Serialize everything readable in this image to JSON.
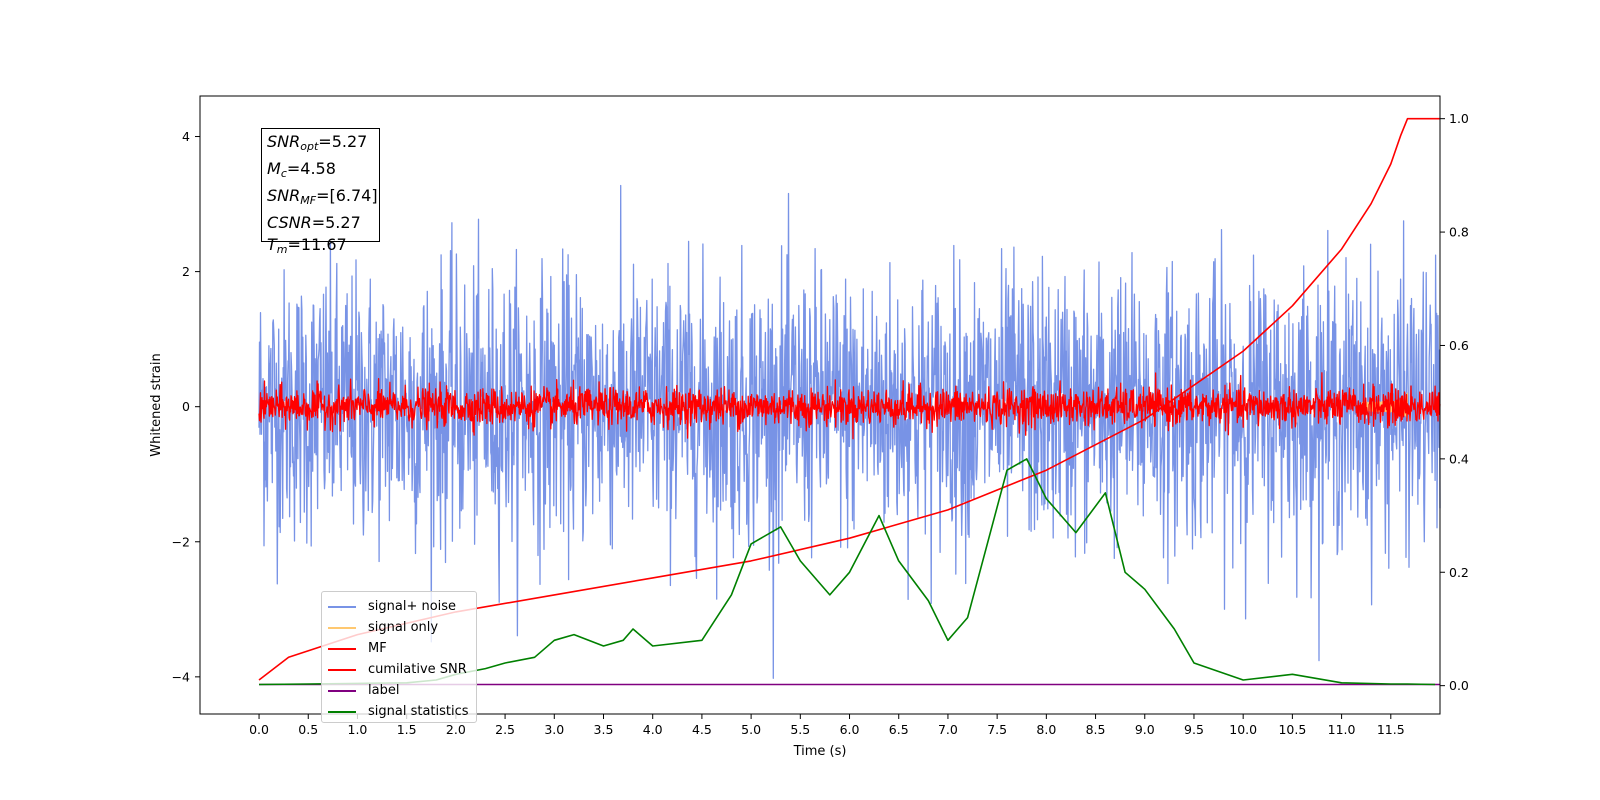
{
  "chart_data": {
    "type": "line",
    "xlabel": "Time (s)",
    "ylabel": "Whitened strain",
    "xlim": [
      -0.6,
      12.0
    ],
    "ylim_left": [
      -4.55,
      4.6
    ],
    "ylim_right": [
      -0.05,
      1.04
    ],
    "x_ticks": [
      "0.0",
      "0.5",
      "1.0",
      "1.5",
      "2.0",
      "2.5",
      "3.0",
      "3.5",
      "4.0",
      "4.5",
      "5.0",
      "5.5",
      "6.0",
      "6.5",
      "7.0",
      "7.5",
      "8.0",
      "8.5",
      "9.0",
      "9.5",
      "10.0",
      "10.5",
      "11.0",
      "11.5"
    ],
    "y_ticks_left": [
      "4",
      "2",
      "0",
      "−2",
      "−4"
    ],
    "y_ticks_right": [
      "1.0",
      "0.8",
      "0.6",
      "0.4",
      "0.2",
      "0.0"
    ],
    "annotation": [
      {
        "var": "SNR",
        "sub": "opt",
        "val": "=5.27"
      },
      {
        "var": "M",
        "sub": "c",
        "val": "=4.58"
      },
      {
        "var": "SNR",
        "sub": "MF",
        "val": "=[6.74]"
      },
      {
        "var": "CSNR",
        "sub": "",
        "val": "=5.27"
      },
      {
        "var": "T",
        "sub": "m",
        "val": "=11.67"
      }
    ],
    "series": [
      {
        "name": "signal+ noise",
        "color": "#7893e6",
        "style": "noise",
        "amplitude_std": 1.0,
        "x_range": [
          0.0,
          12.0
        ]
      },
      {
        "name": "signal only",
        "color": "#ffc870",
        "style": "chirp",
        "x_range": [
          11.2,
          11.67
        ]
      },
      {
        "name": "MF",
        "color": "#ff0000",
        "style": "noise",
        "amplitude_std": 0.14,
        "x_range": [
          0.0,
          12.0
        ]
      },
      {
        "name": "cumilative SNR",
        "color": "#ff0000",
        "axis": "right",
        "x": [
          0.0,
          0.3,
          1.0,
          2.0,
          3.0,
          4.0,
          5.0,
          6.0,
          7.0,
          8.0,
          9.0,
          10.0,
          10.5,
          11.0,
          11.3,
          11.5,
          11.6,
          11.67,
          12.0
        ],
        "values": [
          0.01,
          0.05,
          0.09,
          0.13,
          0.16,
          0.19,
          0.22,
          0.26,
          0.31,
          0.38,
          0.47,
          0.59,
          0.67,
          0.77,
          0.85,
          0.92,
          0.97,
          1.0,
          1.0
        ]
      },
      {
        "name": "label",
        "color": "#800080",
        "axis": "right",
        "x": [
          0.0,
          11.67,
          12.0
        ],
        "values": [
          0.002,
          0.002,
          0.002
        ]
      },
      {
        "name": "signal statistics",
        "color": "#008000",
        "axis": "right",
        "x": [
          0.0,
          0.5,
          1.0,
          1.5,
          1.8,
          2.0,
          2.3,
          2.5,
          2.8,
          3.0,
          3.2,
          3.5,
          3.7,
          3.8,
          4.0,
          4.5,
          4.8,
          5.0,
          5.3,
          5.5,
          5.8,
          6.0,
          6.3,
          6.5,
          6.8,
          7.0,
          7.2,
          7.4,
          7.6,
          7.8,
          8.0,
          8.3,
          8.6,
          8.8,
          9.0,
          9.3,
          9.5,
          10.0,
          10.5,
          11.0,
          11.5,
          11.67,
          11.95
        ],
        "values": [
          0.002,
          0.003,
          0.004,
          0.005,
          0.01,
          0.02,
          0.03,
          0.04,
          0.05,
          0.08,
          0.09,
          0.07,
          0.08,
          0.1,
          0.07,
          0.08,
          0.16,
          0.25,
          0.28,
          0.22,
          0.16,
          0.2,
          0.3,
          0.22,
          0.15,
          0.08,
          0.12,
          0.25,
          0.38,
          0.4,
          0.33,
          0.27,
          0.34,
          0.2,
          0.17,
          0.1,
          0.04,
          0.01,
          0.02,
          0.005,
          0.003,
          0.003,
          0.002
        ]
      }
    ]
  }
}
